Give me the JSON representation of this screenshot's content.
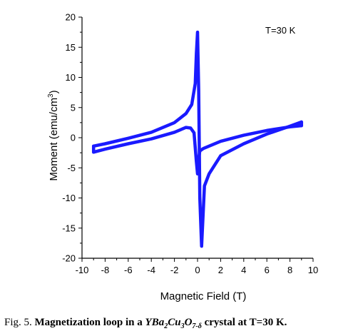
{
  "chart_data": {
    "type": "line",
    "title": "",
    "annotation": "T=30 K",
    "xlabel": "Magnetic Field (T)",
    "ylabel_main": "Moment (emu/cm",
    "ylabel_sup": "3",
    "ylabel_close": ")",
    "xlim": [
      -10,
      10
    ],
    "ylim": [
      -20,
      20
    ],
    "xticks": [
      -10,
      -8,
      -6,
      -4,
      -2,
      0,
      2,
      4,
      6,
      8,
      10
    ],
    "yticks": [
      -20,
      -15,
      -10,
      -5,
      0,
      5,
      10,
      15,
      20
    ],
    "line_color": "#1a1aff",
    "series": [
      {
        "branch": "field-decreasing",
        "x": [
          9,
          8,
          6,
          4,
          2,
          1,
          0.5,
          0.2,
          0.1,
          0.0,
          -0.1,
          -0.3,
          -0.6,
          -1,
          -2,
          -4,
          -6,
          -8,
          -9
        ],
        "y": [
          2.0,
          1.8,
          1.2,
          0.4,
          -0.6,
          -1.4,
          -1.8,
          -2.2,
          -3.5,
          -6,
          -4,
          0.8,
          1.6,
          1.7,
          0.9,
          -0.2,
          -1.0,
          -1.9,
          -2.4
        ]
      },
      {
        "branch": "field-increasing",
        "x": [
          -9,
          -8,
          -6,
          -4,
          -2,
          -1,
          -0.5,
          -0.2,
          -0.1,
          0.0,
          0.1,
          0.2,
          0.35,
          0.6,
          1,
          2,
          4,
          6,
          8,
          9
        ],
        "y": [
          -1.4,
          -1.0,
          -0.1,
          0.9,
          2.5,
          4.0,
          5.5,
          9.0,
          14.0,
          17.5,
          8.0,
          -10.0,
          -18.0,
          -8.0,
          -6.0,
          -3.0,
          -1.0,
          0.6,
          1.9,
          2.6
        ]
      }
    ]
  },
  "caption": {
    "prefix": "Fig. 5. ",
    "bold_text": "Magnetization loop in a ",
    "formula_parts": [
      "YBa",
      "2",
      "Cu",
      "3",
      "O",
      "7-δ"
    ],
    "suffix": " crystal at T=30 K."
  }
}
